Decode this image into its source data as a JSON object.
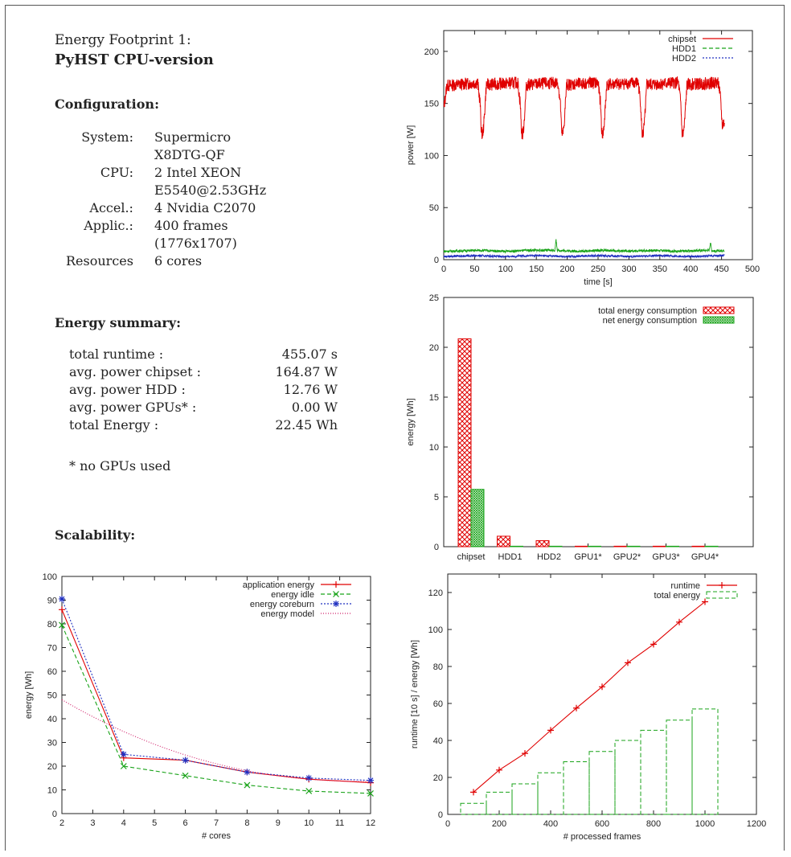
{
  "header": {
    "title_line1": "Energy Footprint 1:",
    "title_line2": "PyHST CPU-version"
  },
  "configuration": {
    "heading": "Configuration:",
    "rows": [
      {
        "key": "System:",
        "value": "Supermicro"
      },
      {
        "key": "",
        "value": "X8DTG-QF"
      },
      {
        "key": "CPU:",
        "value": "2 Intel XEON"
      },
      {
        "key": "",
        "value": "E5540@2.53GHz"
      },
      {
        "key": "Accel.:",
        "value": "4 Nvidia C2070"
      },
      {
        "key": "Applic.:",
        "value": "400 frames"
      },
      {
        "key": "",
        "value": "(1776x1707)"
      },
      {
        "key": "Resources",
        "value": "6 cores"
      }
    ]
  },
  "energy_summary": {
    "heading": "Energy summary:",
    "rows": [
      {
        "key": "total runtime :",
        "value": "455.07 s"
      },
      {
        "key": "avg. power chipset :",
        "value": "164.87 W"
      },
      {
        "key": "avg. power HDD :",
        "value": "12.76 W"
      },
      {
        "key": "avg. power GPUs* :",
        "value": "0.00 W"
      },
      {
        "key": "total Energy :",
        "value": "22.45 Wh"
      }
    ],
    "footnote": "* no GPUs used"
  },
  "scalability": {
    "heading": "Scalability:"
  },
  "chart_data": [
    {
      "type": "line",
      "xlabel": "time [s]",
      "ylabel": "power [W]",
      "xlim": [
        0,
        500
      ],
      "ylim": [
        0,
        220
      ],
      "xticks": [
        0,
        50,
        100,
        150,
        200,
        250,
        300,
        350,
        400,
        450,
        500
      ],
      "yticks": [
        0,
        50,
        100,
        150,
        200
      ],
      "legend_position": "top-right",
      "series": [
        {
          "name": "chipset",
          "color": "#e00000",
          "dash": "solid",
          "x": [
            0,
            5,
            55,
            59,
            61,
            63,
            65,
            69,
            120,
            124,
            126,
            128,
            130,
            134,
            185,
            189,
            191,
            193,
            195,
            199,
            250,
            254,
            256,
            258,
            260,
            264,
            315,
            319,
            321,
            323,
            325,
            329,
            380,
            384,
            386,
            388,
            390,
            394,
            445,
            449,
            451,
            453,
            455
          ],
          "y": [
            145,
            167,
            170,
            150,
            122,
            120,
            130,
            168,
            170,
            150,
            122,
            120,
            130,
            168,
            170,
            150,
            122,
            120,
            130,
            168,
            170,
            150,
            122,
            120,
            130,
            168,
            170,
            150,
            122,
            120,
            130,
            168,
            170,
            150,
            122,
            120,
            130,
            168,
            170,
            150,
            128,
            132,
            130
          ]
        },
        {
          "name": "HDD1",
          "color": "#19a319",
          "dash": "5,3",
          "x": [
            0,
            60,
            100,
            140,
            180,
            182,
            184,
            220,
            260,
            300,
            340,
            380,
            420,
            430,
            432,
            434,
            440,
            455
          ],
          "y": [
            8,
            9,
            8,
            9,
            9,
            19,
            9,
            8,
            9,
            8,
            9,
            8,
            9,
            9,
            17,
            9,
            8,
            9
          ]
        },
        {
          "name": "HDD2",
          "color": "#2030c0",
          "dash": "2,2",
          "x": [
            0,
            50,
            100,
            150,
            200,
            250,
            300,
            350,
            400,
            455
          ],
          "y": [
            3,
            4,
            3,
            4,
            3,
            4,
            3,
            4,
            3,
            4
          ]
        }
      ]
    },
    {
      "type": "bar",
      "xlabel": "",
      "ylabel": "energy [Wh]",
      "ylim": [
        0,
        25
      ],
      "yticks": [
        0,
        5,
        10,
        15,
        20,
        25
      ],
      "categories": [
        "chipset",
        "HDD1",
        "HDD2",
        "GPU1*",
        "GPU2*",
        "GPU3*",
        "GPU4*"
      ],
      "legend_position": "top-right",
      "series": [
        {
          "name": "total energy consumption",
          "color": "#e00000",
          "values": [
            20.85,
            1.05,
            0.6,
            0.02,
            0.02,
            0.02,
            0.02
          ]
        },
        {
          "name": "net energy consumption",
          "color": "#19a319",
          "values": [
            5.75,
            0.03,
            0.02,
            0.01,
            0.01,
            0.01,
            0.01
          ]
        }
      ]
    },
    {
      "type": "line",
      "xlabel": "# cores",
      "ylabel": "energy [Wh]",
      "xlim": [
        2,
        12
      ],
      "ylim": [
        0,
        100
      ],
      "xticks": [
        2,
        3,
        4,
        5,
        6,
        7,
        8,
        9,
        10,
        11,
        12
      ],
      "yticks": [
        0,
        10,
        20,
        30,
        40,
        50,
        60,
        70,
        80,
        90,
        100
      ],
      "legend_position": "top-right",
      "series": [
        {
          "name": "application energy",
          "color": "#e00000",
          "dash": "solid",
          "marker": "plus",
          "x": [
            2,
            4,
            6,
            8,
            10,
            12
          ],
          "y": [
            86,
            23.5,
            22.5,
            17.5,
            14.5,
            13
          ]
        },
        {
          "name": "energy idle",
          "color": "#19a319",
          "dash": "5,3",
          "marker": "x",
          "x": [
            2,
            4,
            6,
            8,
            10,
            12
          ],
          "y": [
            79.5,
            20,
            16,
            12,
            9.5,
            8.5
          ]
        },
        {
          "name": "energy coreburn",
          "color": "#2030c0",
          "dash": "2,2",
          "marker": "star",
          "x": [
            2,
            4,
            6,
            8,
            10,
            12
          ],
          "y": [
            90.5,
            25,
            22.5,
            17.5,
            15,
            14
          ]
        },
        {
          "name": "energy model",
          "color": "#d0206a",
          "dash": "1,2",
          "marker": "none",
          "x": [
            2,
            3,
            4,
            5,
            6,
            7,
            8,
            9,
            10,
            11,
            12
          ],
          "y": [
            48,
            38,
            31,
            27,
            23.5,
            21,
            19,
            17,
            15.5,
            14.5,
            13.5
          ]
        }
      ]
    },
    {
      "type": "line",
      "xlabel": "# processed frames",
      "ylabel": "runtime [10 s] / energy [Wh]",
      "xlim": [
        0,
        1200
      ],
      "ylim": [
        0,
        130
      ],
      "xticks": [
        0,
        200,
        400,
        600,
        800,
        1000,
        1200
      ],
      "yticks": [
        0,
        20,
        40,
        60,
        80,
        100,
        120
      ],
      "legend_position": "top-right",
      "series": [
        {
          "name": "runtime",
          "color": "#e00000",
          "dash": "solid",
          "marker": "plus",
          "x": [
            100,
            200,
            300,
            400,
            500,
            600,
            700,
            800,
            900,
            1000
          ],
          "y": [
            12,
            24,
            33,
            45.5,
            57.5,
            69,
            82,
            92,
            104,
            115
          ]
        },
        {
          "name": "total energy",
          "color": "#19a319",
          "type": "bar",
          "dash": "5,3",
          "x": [
            100,
            200,
            300,
            400,
            500,
            600,
            700,
            800,
            900,
            1000
          ],
          "y": [
            6,
            12,
            16.5,
            22.5,
            28.5,
            34,
            40,
            45.5,
            51,
            57
          ]
        }
      ]
    }
  ]
}
